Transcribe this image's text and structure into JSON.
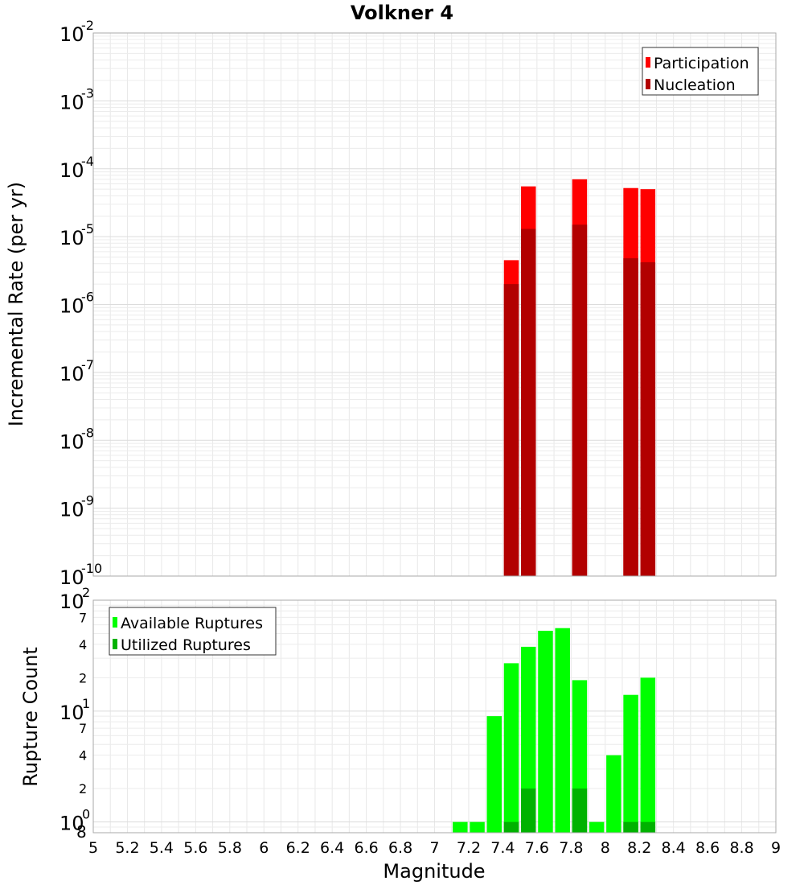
{
  "chart_data": [
    {
      "type": "bar",
      "title": "Volkner 4",
      "xlabel": "",
      "ylabel": "Incremental Rate (per yr)",
      "yscale": "log",
      "ylim": [
        1e-10,
        0.01
      ],
      "xlim": [
        5,
        9
      ],
      "grid": true,
      "legend_position": "top-right",
      "y_ticks": [
        {
          "base": "10",
          "exp": "-10",
          "value": 1e-10
        },
        {
          "base": "10",
          "exp": "-9",
          "value": 1e-09
        },
        {
          "base": "10",
          "exp": "-8",
          "value": 1e-08
        },
        {
          "base": "10",
          "exp": "-7",
          "value": 1e-07
        },
        {
          "base": "10",
          "exp": "-6",
          "value": 1e-06
        },
        {
          "base": "10",
          "exp": "-5",
          "value": 1e-05
        },
        {
          "base": "10",
          "exp": "-4",
          "value": 0.0001
        },
        {
          "base": "10",
          "exp": "-3",
          "value": 0.001
        },
        {
          "base": "10",
          "exp": "-2",
          "value": 0.01
        }
      ],
      "series": [
        {
          "name": "Participation",
          "color": "#ff0000",
          "x": [
            7.45,
            7.55,
            7.85,
            8.15,
            8.25
          ],
          "values": [
            4.5e-06,
            5.5e-05,
            7e-05,
            5.2e-05,
            5e-05
          ]
        },
        {
          "name": "Nucleation",
          "color": "#b20000",
          "x": [
            7.45,
            7.55,
            7.85,
            8.15,
            8.25
          ],
          "values": [
            2e-06,
            1.3e-05,
            1.5e-05,
            4.8e-06,
            4.2e-06
          ]
        }
      ]
    },
    {
      "type": "bar",
      "title": "",
      "xlabel": "Magnitude",
      "ylabel": "Rupture Count",
      "yscale": "log",
      "ylim": [
        0.8,
        100
      ],
      "xlim": [
        5,
        9
      ],
      "grid": true,
      "legend_position": "top-left",
      "x_ticks": [
        "5",
        "5.2",
        "5.4",
        "5.6",
        "5.8",
        "6",
        "6.2",
        "6.4",
        "6.6",
        "6.8",
        "7",
        "7.2",
        "7.4",
        "7.6",
        "7.8",
        "8",
        "8.2",
        "8.4",
        "8.6",
        "8.8",
        "9"
      ],
      "y_major_ticks": [
        {
          "base": "10",
          "exp": "0",
          "value": 1
        },
        {
          "base": "10",
          "exp": "1",
          "value": 10
        },
        {
          "base": "10",
          "exp": "2",
          "value": 100
        }
      ],
      "y_minor_ticks": [
        {
          "label": "8",
          "value": 0.8
        },
        {
          "label": "2",
          "value": 2
        },
        {
          "label": "4",
          "value": 4
        },
        {
          "label": "7",
          "value": 7
        },
        {
          "label": "2",
          "value": 20
        },
        {
          "label": "4",
          "value": 40
        },
        {
          "label": "7",
          "value": 70
        }
      ],
      "series": [
        {
          "name": "Available Ruptures",
          "color": "#00ff00",
          "x": [
            7.15,
            7.25,
            7.35,
            7.45,
            7.55,
            7.65,
            7.75,
            7.85,
            7.95,
            8.05,
            8.15,
            8.25
          ],
          "values": [
            1,
            1,
            9,
            27,
            38,
            53,
            56,
            19,
            1,
            4,
            14,
            20
          ]
        },
        {
          "name": "Utilized Ruptures",
          "color": "#00b200",
          "x": [
            7.45,
            7.55,
            7.85,
            8.15,
            8.25
          ],
          "values": [
            1,
            2,
            2,
            1,
            1
          ]
        }
      ]
    }
  ]
}
